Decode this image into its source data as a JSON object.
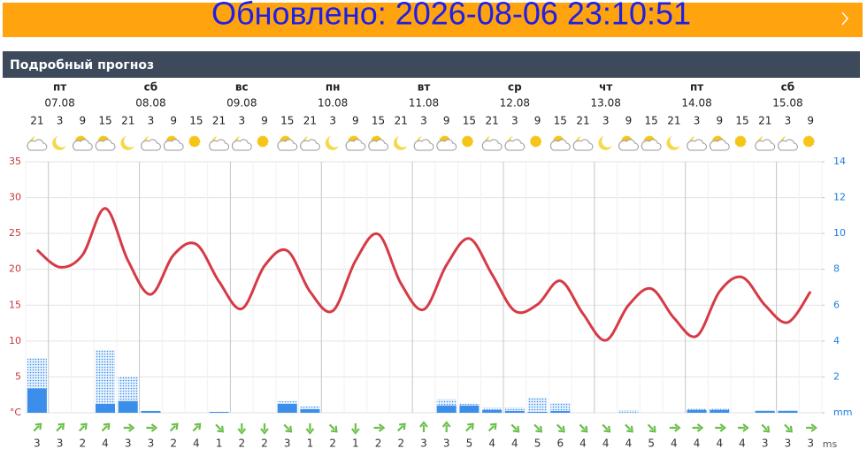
{
  "banner": {
    "text": "Обновлено: 2026-08-06 23:10:51"
  },
  "section_title": "Подробный прогноз",
  "chart_data": {
    "type": "line",
    "days": [
      {
        "weekday": "пт",
        "date": "07.08"
      },
      {
        "weekday": "сб",
        "date": "08.08"
      },
      {
        "weekday": "вс",
        "date": "09.08"
      },
      {
        "weekday": "пн",
        "date": "10.08"
      },
      {
        "weekday": "вт",
        "date": "11.08"
      },
      {
        "weekday": "ср",
        "date": "12.08"
      },
      {
        "weekday": "чт",
        "date": "13.08"
      },
      {
        "weekday": "пт",
        "date": "14.08"
      },
      {
        "weekday": "сб",
        "date": "15.08"
      }
    ],
    "categories": [
      21,
      3,
      9,
      15,
      21,
      3,
      9,
      15,
      21,
      3,
      9,
      15,
      21,
      3,
      9,
      15,
      21,
      3,
      9,
      15,
      21,
      3,
      9,
      15,
      21,
      3,
      9,
      15,
      21,
      3,
      9,
      15,
      21,
      3,
      9
    ],
    "series": [
      {
        "color": "#d63a45",
        "values": [
          22.7,
          20.3,
          22,
          28.5,
          21.2,
          16.5,
          22,
          23.5,
          18.3,
          14.5,
          20.5,
          22.6,
          16.9,
          14.2,
          21.2,
          24.9,
          18,
          14.4,
          20.6,
          24.3,
          19.3,
          14.2,
          15.1,
          18.4,
          13.8,
          10.1,
          15,
          17.3,
          13.2,
          10.7,
          16.9,
          18.9,
          15,
          12.6,
          16.9
        ]
      },
      {
        "color": "#3b8eea",
        "type": "bar",
        "style": "dotted",
        "axis": "y2",
        "values": [
          3.05,
          0,
          0,
          3.5,
          2,
          0.1,
          0,
          0,
          0.05,
          0,
          0,
          0.65,
          0.35,
          0,
          0,
          0,
          0,
          0,
          0.75,
          0.5,
          0.3,
          0.3,
          0.85,
          0.55,
          0,
          0,
          0.15,
          0,
          0,
          0.25,
          0.25,
          0,
          0.15,
          0.15,
          0
        ]
      },
      {
        "color": "#3b8eea",
        "type": "bar",
        "axis": "y2",
        "values": [
          1.35,
          0,
          0,
          0.5,
          0.65,
          0.1,
          0,
          0,
          0.05,
          0,
          0,
          0.5,
          0.2,
          0,
          0,
          0,
          0,
          0,
          0.4,
          0.4,
          0.15,
          0.1,
          0.05,
          0.1,
          0,
          0,
          0,
          0,
          0,
          0.15,
          0.15,
          0,
          0.1,
          0.1,
          0
        ]
      }
    ],
    "ylim": [
      0,
      35
    ],
    "yticks": [
      {
        "value": 0,
        "label": "°C"
      },
      5,
      10,
      15,
      20,
      25,
      30,
      35
    ],
    "y2lim": [
      0,
      14
    ],
    "y2ticks": [
      {
        "value": 0,
        "label": "mm"
      },
      2,
      4,
      6,
      8,
      10,
      12,
      14
    ],
    "grid": true,
    "wind": {
      "unit": "ms",
      "color": "#6cbf4a",
      "speed": [
        3,
        3,
        2,
        4,
        3,
        3,
        2,
        4,
        1,
        2,
        2,
        3,
        1,
        2,
        1,
        2,
        2,
        3,
        3,
        5,
        4,
        4,
        5,
        6,
        4,
        4,
        4,
        5,
        4,
        4,
        4,
        4,
        3,
        3,
        3
      ],
      "direction": [
        45,
        45,
        45,
        45,
        90,
        90,
        45,
        45,
        135,
        180,
        180,
        135,
        180,
        135,
        180,
        90,
        45,
        0,
        0,
        45,
        45,
        135,
        135,
        135,
        135,
        135,
        135,
        135,
        90,
        90,
        90,
        90,
        135,
        135,
        90
      ]
    }
  }
}
